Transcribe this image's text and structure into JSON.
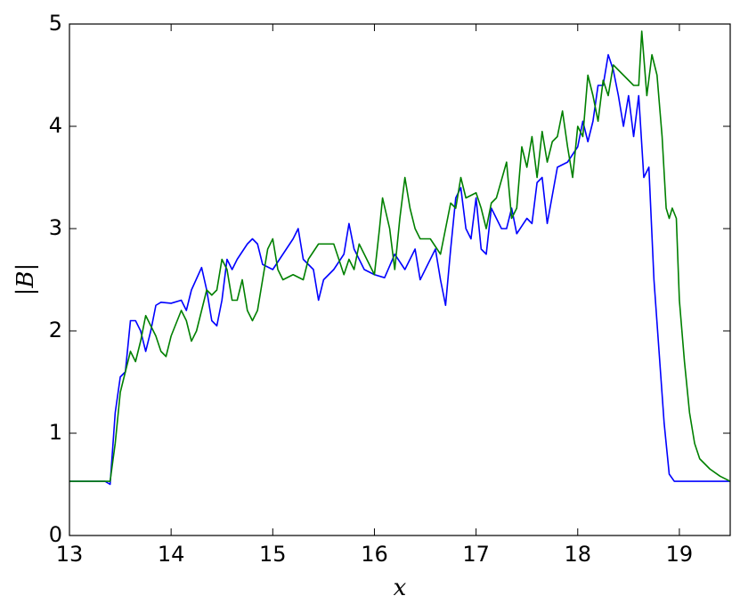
{
  "chart_data": {
    "type": "line",
    "xlabel": "x",
    "ylabel": "|B|",
    "xlim": [
      13,
      19.5
    ],
    "ylim": [
      0,
      5
    ],
    "xticks": [
      13,
      14,
      15,
      16,
      17,
      18,
      19
    ],
    "yticks": [
      0,
      1,
      2,
      3,
      4,
      5
    ],
    "grid": false,
    "series": [
      {
        "color": "#0000ff",
        "x": [
          13,
          13.35,
          13.4,
          13.45,
          13.5,
          13.55,
          13.6,
          13.65,
          13.7,
          13.75,
          13.8,
          13.85,
          13.9,
          14.0,
          14.1,
          14.15,
          14.2,
          14.3,
          14.35,
          14.4,
          14.45,
          14.5,
          14.55,
          14.6,
          14.65,
          14.75,
          14.8,
          14.85,
          14.9,
          15.0,
          15.1,
          15.2,
          15.25,
          15.3,
          15.4,
          15.45,
          15.5,
          15.6,
          15.7,
          15.75,
          15.8,
          15.9,
          16.0,
          16.1,
          16.2,
          16.3,
          16.4,
          16.45,
          16.5,
          16.55,
          16.6,
          16.65,
          16.7,
          16.75,
          16.8,
          16.85,
          16.9,
          16.95,
          17.0,
          17.05,
          17.1,
          17.15,
          17.2,
          17.25,
          17.3,
          17.35,
          17.4,
          17.5,
          17.55,
          17.6,
          17.65,
          17.7,
          17.8,
          17.9,
          18.0,
          18.05,
          18.1,
          18.15,
          18.2,
          18.25,
          18.3,
          18.35,
          18.4,
          18.45,
          18.5,
          18.55,
          18.6,
          18.65,
          18.7,
          18.75,
          18.8,
          18.85,
          18.9,
          18.95,
          19.5
        ],
        "values": [
          0.53,
          0.53,
          0.5,
          1.2,
          1.55,
          1.6,
          2.1,
          2.1,
          2.0,
          1.8,
          2.0,
          2.25,
          2.28,
          2.27,
          2.3,
          2.2,
          2.4,
          2.62,
          2.4,
          2.1,
          2.05,
          2.3,
          2.7,
          2.6,
          2.7,
          2.85,
          2.9,
          2.85,
          2.65,
          2.6,
          2.75,
          2.9,
          3.0,
          2.7,
          2.6,
          2.3,
          2.5,
          2.6,
          2.75,
          3.05,
          2.8,
          2.6,
          2.55,
          2.52,
          2.75,
          2.6,
          2.8,
          2.5,
          2.6,
          2.7,
          2.8,
          2.5,
          2.25,
          2.8,
          3.3,
          3.4,
          3.0,
          2.9,
          3.3,
          2.8,
          2.75,
          3.2,
          3.1,
          3.0,
          3.0,
          3.2,
          2.95,
          3.1,
          3.05,
          3.45,
          3.5,
          3.05,
          3.6,
          3.65,
          3.8,
          4.05,
          3.85,
          4.05,
          4.4,
          4.4,
          4.7,
          4.55,
          4.3,
          4.0,
          4.3,
          3.9,
          4.3,
          3.5,
          3.6,
          2.5,
          1.8,
          1.1,
          0.6,
          0.53,
          0.53
        ]
      },
      {
        "color": "#008000",
        "x": [
          13,
          13.4,
          13.45,
          13.5,
          13.55,
          13.6,
          13.65,
          13.7,
          13.75,
          13.8,
          13.85,
          13.9,
          13.95,
          14.0,
          14.1,
          14.15,
          14.2,
          14.25,
          14.3,
          14.35,
          14.4,
          14.45,
          14.5,
          14.55,
          14.6,
          14.65,
          14.7,
          14.75,
          14.8,
          14.85,
          14.9,
          14.95,
          15.0,
          15.05,
          15.1,
          15.2,
          15.3,
          15.35,
          15.45,
          15.5,
          15.6,
          15.7,
          15.75,
          15.8,
          15.85,
          15.9,
          16.0,
          16.05,
          16.08,
          16.15,
          16.2,
          16.25,
          16.3,
          16.35,
          16.4,
          16.45,
          16.55,
          16.65,
          16.75,
          16.8,
          16.85,
          16.9,
          17.0,
          17.05,
          17.1,
          17.15,
          17.2,
          17.3,
          17.35,
          17.4,
          17.45,
          17.5,
          17.55,
          17.6,
          17.65,
          17.7,
          17.75,
          17.8,
          17.85,
          17.9,
          17.95,
          18.0,
          18.05,
          18.1,
          18.15,
          18.2,
          18.25,
          18.3,
          18.35,
          18.4,
          18.5,
          18.55,
          18.6,
          18.63,
          18.68,
          18.73,
          18.78,
          18.83,
          18.87,
          18.9,
          18.93,
          18.97,
          19.0,
          19.05,
          19.1,
          19.15,
          19.2,
          19.3,
          19.4,
          19.5
        ],
        "values": [
          0.53,
          0.53,
          0.9,
          1.4,
          1.6,
          1.8,
          1.7,
          1.9,
          2.15,
          2.05,
          1.95,
          1.8,
          1.75,
          1.95,
          2.2,
          2.1,
          1.9,
          2.0,
          2.2,
          2.4,
          2.35,
          2.4,
          2.7,
          2.6,
          2.3,
          2.3,
          2.5,
          2.2,
          2.1,
          2.2,
          2.5,
          2.8,
          2.9,
          2.6,
          2.5,
          2.55,
          2.5,
          2.7,
          2.85,
          2.85,
          2.85,
          2.55,
          2.7,
          2.6,
          2.85,
          2.75,
          2.55,
          3.0,
          3.3,
          3.0,
          2.6,
          3.1,
          3.5,
          3.2,
          3.0,
          2.9,
          2.9,
          2.75,
          3.25,
          3.2,
          3.5,
          3.3,
          3.35,
          3.2,
          3.0,
          3.25,
          3.3,
          3.65,
          3.1,
          3.2,
          3.8,
          3.6,
          3.9,
          3.5,
          3.95,
          3.65,
          3.85,
          3.9,
          4.15,
          3.8,
          3.5,
          4.0,
          3.9,
          4.5,
          4.3,
          4.05,
          4.45,
          4.3,
          4.6,
          4.55,
          4.45,
          4.4,
          4.4,
          4.93,
          4.3,
          4.7,
          4.5,
          3.9,
          3.2,
          3.1,
          3.2,
          3.1,
          2.3,
          1.7,
          1.2,
          0.9,
          0.75,
          0.65,
          0.58,
          0.53
        ]
      }
    ]
  }
}
